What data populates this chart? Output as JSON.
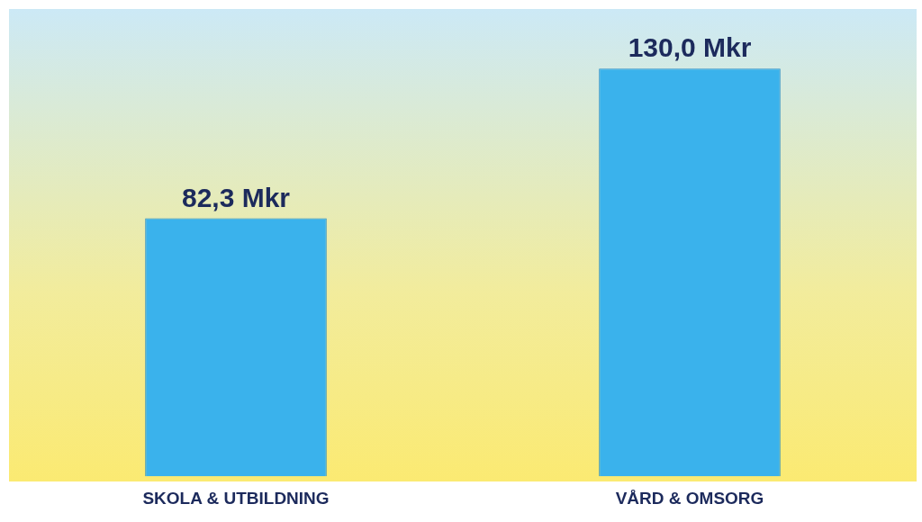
{
  "chart_data": {
    "type": "bar",
    "categories": [
      "SKOLA & UTBILDNING",
      "VÅRD & OMSORG"
    ],
    "values": [
      82.3,
      130.0
    ],
    "value_labels": [
      "82,3 Mkr",
      "130,0 Mkr"
    ],
    "color": "#3ab2ec",
    "ylim": [
      0,
      149
    ],
    "grid": false,
    "legend": false
  }
}
